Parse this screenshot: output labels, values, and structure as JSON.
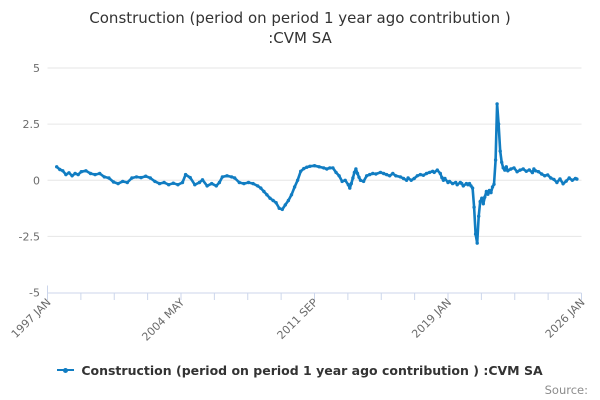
{
  "title": {
    "line1": "Construction (period on period 1 year ago contribution )",
    "line2": ":CVM SA"
  },
  "legend": {
    "label": "Construction (period on period 1 year ago contribution ) :CVM SA",
    "marker_color": "#117dc2"
  },
  "source_label": "Source:",
  "colors": {
    "line": "#117dc2",
    "grid": "#e6e6e6",
    "axis": "#ccd6eb",
    "tick_text": "#6b6b6b",
    "title_text": "#333333",
    "legend_text": "#333333",
    "source_text": "#8c8c8c"
  },
  "chart_data": {
    "type": "line",
    "title": "Construction (period on period 1 year ago contribution ) :CVM SA",
    "ylabel": "",
    "xlabel": "",
    "ylim": [
      -5,
      5
    ],
    "y_ticks": [
      5,
      2.5,
      0,
      -2.5,
      -5
    ],
    "y_tick_labels": [
      "5",
      "2.5",
      "0",
      "-2.5",
      "-5"
    ],
    "grid": true,
    "legend_position": "bottom",
    "x_axis": {
      "unit": "months since 1997 JAN",
      "total_months": 348,
      "tick_count": 17,
      "tick_labels": [
        "1997 JAN",
        "2004 MAY",
        "2011 SEP",
        "2019 JAN",
        "2026 JAN"
      ],
      "label_tick_indices": [
        0,
        4,
        8,
        12,
        16
      ]
    },
    "series": [
      {
        "name": "Construction (period on period 1 year ago contribution ) :CVM SA",
        "color": "#117dc2",
        "points": [
          [
            6,
            0.6
          ],
          [
            8,
            0.48
          ],
          [
            10,
            0.42
          ],
          [
            12,
            0.25
          ],
          [
            14,
            0.33
          ],
          [
            16,
            0.2
          ],
          [
            18,
            0.3
          ],
          [
            20,
            0.25
          ],
          [
            22,
            0.38
          ],
          [
            25,
            0.42
          ],
          [
            28,
            0.3
          ],
          [
            31,
            0.25
          ],
          [
            34,
            0.3
          ],
          [
            37,
            0.15
          ],
          [
            40,
            0.1
          ],
          [
            43,
            -0.08
          ],
          [
            46,
            -0.15
          ],
          [
            49,
            -0.05
          ],
          [
            52,
            -0.1
          ],
          [
            55,
            0.1
          ],
          [
            58,
            0.15
          ],
          [
            61,
            0.12
          ],
          [
            64,
            0.18
          ],
          [
            67,
            0.1
          ],
          [
            70,
            -0.05
          ],
          [
            73,
            -0.15
          ],
          [
            76,
            -0.1
          ],
          [
            79,
            -0.2
          ],
          [
            82,
            -0.13
          ],
          [
            85,
            -0.2
          ],
          [
            88,
            -0.1
          ],
          [
            90,
            0.25
          ],
          [
            93,
            0.12
          ],
          [
            96,
            -0.2
          ],
          [
            99,
            -0.1
          ],
          [
            101,
            0.02
          ],
          [
            104,
            -0.25
          ],
          [
            107,
            -0.15
          ],
          [
            110,
            -0.25
          ],
          [
            112,
            -0.1
          ],
          [
            114,
            0.15
          ],
          [
            117,
            0.2
          ],
          [
            120,
            0.15
          ],
          [
            122,
            0.1
          ],
          [
            125,
            -0.1
          ],
          [
            128,
            -0.15
          ],
          [
            131,
            -0.1
          ],
          [
            134,
            -0.15
          ],
          [
            137,
            -0.25
          ],
          [
            139,
            -0.35
          ],
          [
            141,
            -0.5
          ],
          [
            143,
            -0.65
          ],
          [
            145,
            -0.8
          ],
          [
            147,
            -0.9
          ],
          [
            149,
            -1.0
          ],
          [
            151,
            -1.25
          ],
          [
            153,
            -1.3
          ],
          [
            155,
            -1.1
          ],
          [
            157,
            -0.9
          ],
          [
            159,
            -0.65
          ],
          [
            161,
            -0.3
          ],
          [
            163,
            0.0
          ],
          [
            165,
            0.4
          ],
          [
            167,
            0.52
          ],
          [
            169,
            0.58
          ],
          [
            171,
            0.62
          ],
          [
            174,
            0.65
          ],
          [
            177,
            0.6
          ],
          [
            180,
            0.55
          ],
          [
            182,
            0.5
          ],
          [
            184,
            0.55
          ],
          [
            186,
            0.55
          ],
          [
            188,
            0.35
          ],
          [
            190,
            0.2
          ],
          [
            192,
            -0.05
          ],
          [
            194,
            0.0
          ],
          [
            196,
            -0.2
          ],
          [
            197,
            -0.35
          ],
          [
            198,
            -0.15
          ],
          [
            199,
            0.1
          ],
          [
            200,
            0.35
          ],
          [
            201,
            0.5
          ],
          [
            202,
            0.3
          ],
          [
            203,
            0.13
          ],
          [
            204,
            0.0
          ],
          [
            206,
            -0.05
          ],
          [
            208,
            0.2
          ],
          [
            210,
            0.25
          ],
          [
            212,
            0.3
          ],
          [
            214,
            0.28
          ],
          [
            217,
            0.35
          ],
          [
            219,
            0.3
          ],
          [
            221,
            0.25
          ],
          [
            223,
            0.2
          ],
          [
            225,
            0.3
          ],
          [
            227,
            0.2
          ],
          [
            230,
            0.15
          ],
          [
            232,
            0.08
          ],
          [
            234,
            0.0
          ],
          [
            235,
            0.1
          ],
          [
            237,
            0.0
          ],
          [
            239,
            0.08
          ],
          [
            241,
            0.2
          ],
          [
            243,
            0.25
          ],
          [
            245,
            0.22
          ],
          [
            247,
            0.3
          ],
          [
            249,
            0.35
          ],
          [
            251,
            0.4
          ],
          [
            252,
            0.35
          ],
          [
            254,
            0.45
          ],
          [
            256,
            0.3
          ],
          [
            257,
            0.12
          ],
          [
            258,
            0.0
          ],
          [
            259,
            0.08
          ],
          [
            261,
            -0.1
          ],
          [
            262,
            -0.05
          ],
          [
            264,
            -0.15
          ],
          [
            266,
            -0.1
          ],
          [
            267,
            -0.2
          ],
          [
            269,
            -0.1
          ],
          [
            270,
            -0.15
          ],
          [
            271,
            -0.25
          ],
          [
            273,
            -0.15
          ],
          [
            274,
            -0.2
          ],
          [
            275,
            -0.15
          ],
          [
            276,
            -0.25
          ],
          [
            277,
            -0.35
          ],
          [
            278,
            -1.2
          ],
          [
            279,
            -2.4
          ],
          [
            280,
            -2.8
          ],
          [
            281,
            -1.6
          ],
          [
            282,
            -0.95
          ],
          [
            283,
            -0.8
          ],
          [
            284,
            -1.05
          ],
          [
            285,
            -0.75
          ],
          [
            286,
            -0.5
          ],
          [
            287,
            -0.62
          ],
          [
            288,
            -0.45
          ],
          [
            289,
            -0.55
          ],
          [
            290,
            -0.3
          ],
          [
            291,
            -0.18
          ],
          [
            292,
            0.9
          ],
          [
            293,
            3.4
          ],
          [
            294,
            2.5
          ],
          [
            295,
            1.3
          ],
          [
            296,
            0.8
          ],
          [
            297,
            0.55
          ],
          [
            298,
            0.45
          ],
          [
            299,
            0.6
          ],
          [
            300,
            0.42
          ],
          [
            302,
            0.5
          ],
          [
            304,
            0.55
          ],
          [
            306,
            0.38
          ],
          [
            308,
            0.45
          ],
          [
            310,
            0.5
          ],
          [
            312,
            0.4
          ],
          [
            314,
            0.46
          ],
          [
            316,
            0.34
          ],
          [
            317,
            0.5
          ],
          [
            318,
            0.42
          ],
          [
            320,
            0.38
          ],
          [
            322,
            0.28
          ],
          [
            324,
            0.2
          ],
          [
            326,
            0.24
          ],
          [
            328,
            0.1
          ],
          [
            330,
            0.04
          ],
          [
            332,
            -0.1
          ],
          [
            334,
            0.06
          ],
          [
            336,
            -0.16
          ],
          [
            338,
            -0.04
          ],
          [
            340,
            0.1
          ],
          [
            342,
            0.0
          ],
          [
            344,
            0.08
          ],
          [
            345,
            0.05
          ]
        ]
      }
    ]
  }
}
